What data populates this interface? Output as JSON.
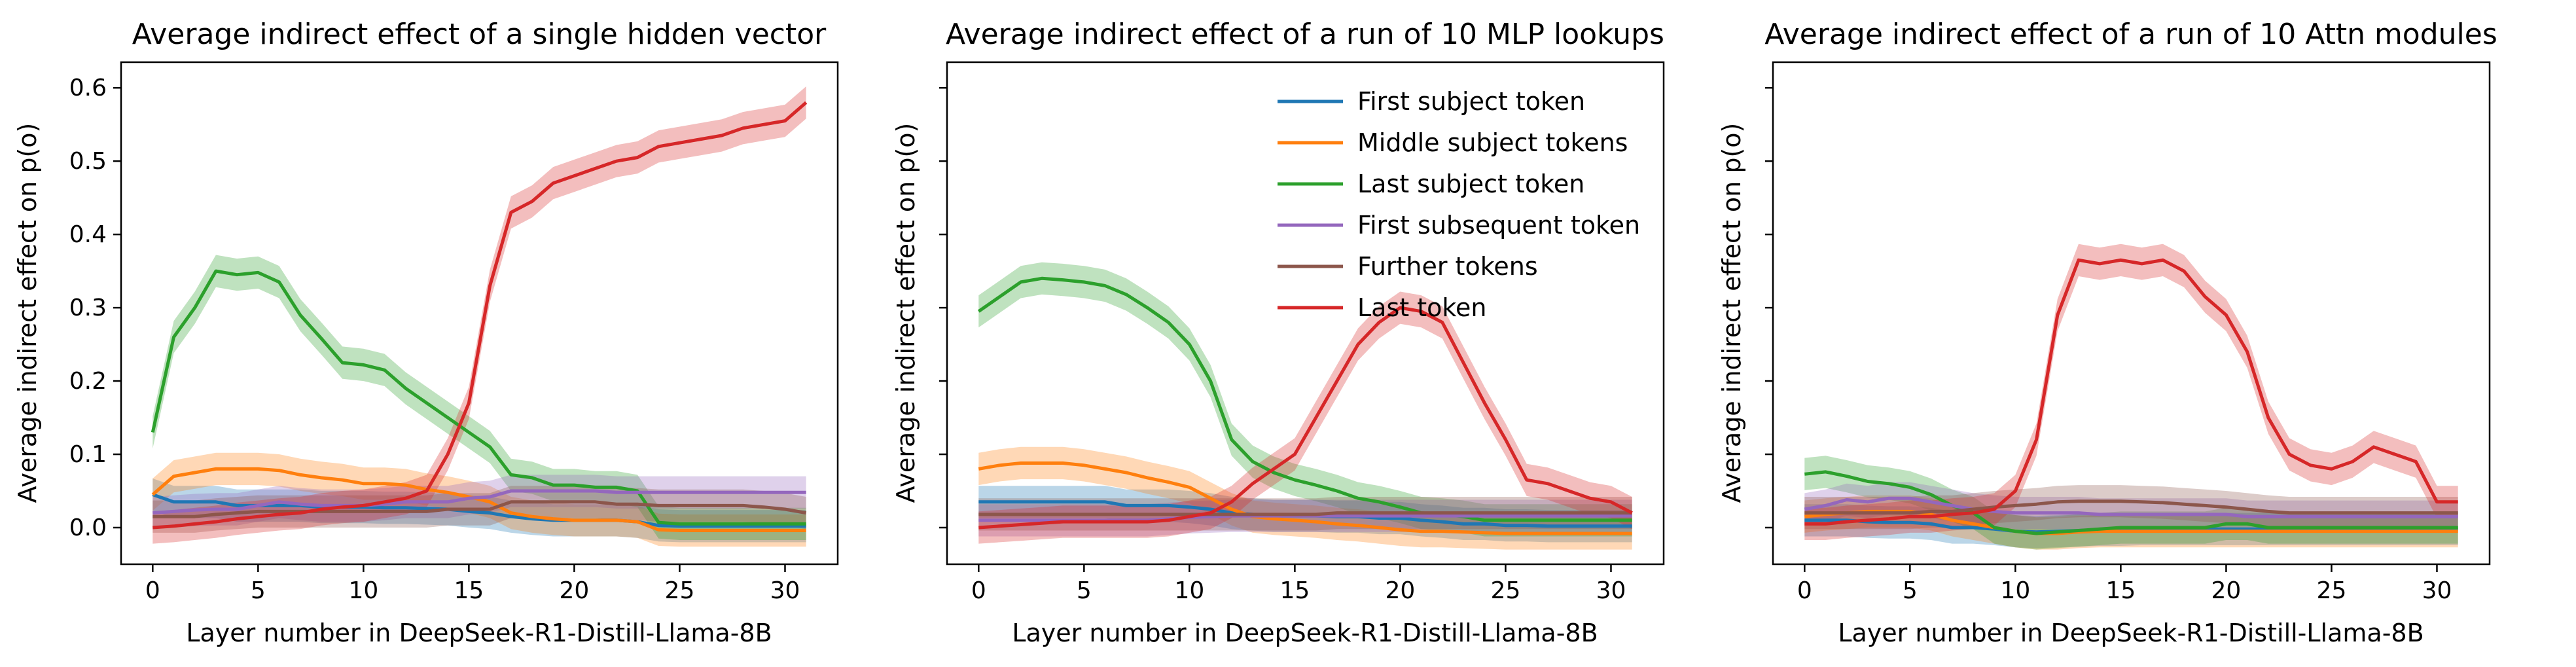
{
  "chart_data": [
    {
      "type": "line",
      "title": "Average indirect effect of a single hidden vector",
      "xlabel": "Layer number in DeepSeek-R1-Distill-Llama-8B",
      "ylabel": "Average indirect effect on p(o)",
      "xlim": [
        -1.5,
        32.5
      ],
      "ylim": [
        -0.05,
        0.635
      ],
      "xticks": [
        0,
        5,
        10,
        15,
        20,
        25,
        30
      ],
      "yticks": [
        0.0,
        0.1,
        0.2,
        0.3,
        0.4,
        0.5,
        0.6
      ],
      "ytick_labels": [
        "0.0",
        "0.1",
        "0.2",
        "0.3",
        "0.4",
        "0.5",
        "0.6"
      ],
      "band": 0.022,
      "x": [
        0,
        1,
        2,
        3,
        4,
        5,
        6,
        7,
        8,
        9,
        10,
        11,
        12,
        13,
        14,
        15,
        16,
        17,
        18,
        19,
        20,
        21,
        22,
        23,
        24,
        25,
        26,
        27,
        28,
        29,
        30,
        31
      ],
      "series": [
        {
          "name": "First subject token",
          "color": "#1f77b4",
          "values": [
            0.045,
            0.035,
            0.035,
            0.035,
            0.03,
            0.03,
            0.03,
            0.03,
            0.028,
            0.028,
            0.028,
            0.027,
            0.027,
            0.026,
            0.025,
            0.022,
            0.02,
            0.015,
            0.012,
            0.01,
            0.01,
            0.01,
            0.01,
            0.008,
            0.003,
            0.002,
            0.002,
            0.002,
            0.002,
            0.002,
            0.002,
            0.002
          ]
        },
        {
          "name": "Middle subject tokens",
          "color": "#ff7f0e",
          "values": [
            0.045,
            0.07,
            0.075,
            0.08,
            0.08,
            0.08,
            0.078,
            0.072,
            0.068,
            0.065,
            0.06,
            0.06,
            0.058,
            0.052,
            0.048,
            0.042,
            0.035,
            0.02,
            0.015,
            0.012,
            0.01,
            0.01,
            0.01,
            0.008,
            -0.003,
            -0.004,
            -0.004,
            -0.004,
            -0.004,
            -0.004,
            -0.004,
            -0.004
          ]
        },
        {
          "name": "Last subject token",
          "color": "#2ca02c",
          "values": [
            0.13,
            0.26,
            0.3,
            0.35,
            0.345,
            0.348,
            0.335,
            0.29,
            0.258,
            0.225,
            0.222,
            0.215,
            0.19,
            0.17,
            0.15,
            0.13,
            0.11,
            0.072,
            0.068,
            0.058,
            0.058,
            0.055,
            0.055,
            0.05,
            0.007,
            0.005,
            0.005,
            0.005,
            0.005,
            0.005,
            0.005,
            0.005
          ]
        },
        {
          "name": "First subsequent token",
          "color": "#9467bd",
          "values": [
            0.02,
            0.022,
            0.024,
            0.025,
            0.025,
            0.03,
            0.035,
            0.032,
            0.03,
            0.03,
            0.03,
            0.032,
            0.035,
            0.035,
            0.035,
            0.04,
            0.042,
            0.05,
            0.05,
            0.05,
            0.05,
            0.05,
            0.048,
            0.048,
            0.048,
            0.048,
            0.048,
            0.048,
            0.048,
            0.048,
            0.048,
            0.048
          ]
        },
        {
          "name": "Further tokens",
          "color": "#8c564b",
          "values": [
            0.015,
            0.015,
            0.015,
            0.018,
            0.02,
            0.022,
            0.022,
            0.022,
            0.022,
            0.022,
            0.022,
            0.022,
            0.022,
            0.022,
            0.025,
            0.025,
            0.025,
            0.035,
            0.035,
            0.035,
            0.035,
            0.035,
            0.032,
            0.032,
            0.03,
            0.03,
            0.03,
            0.03,
            0.03,
            0.028,
            0.025,
            0.02
          ]
        },
        {
          "name": "Last token",
          "color": "#d62728",
          "values": [
            0.0,
            0.002,
            0.005,
            0.008,
            0.012,
            0.015,
            0.018,
            0.02,
            0.025,
            0.028,
            0.03,
            0.035,
            0.04,
            0.05,
            0.1,
            0.17,
            0.33,
            0.43,
            0.445,
            0.47,
            0.48,
            0.49,
            0.5,
            0.505,
            0.52,
            0.525,
            0.53,
            0.535,
            0.545,
            0.55,
            0.555,
            0.58
          ]
        }
      ]
    },
    {
      "type": "line",
      "title": "Average indirect effect of a run of 10 MLP lookups",
      "xlabel": "Layer number in DeepSeek-R1-Distill-Llama-8B",
      "ylabel": "Average indirect effect on p(o)",
      "xlim": [
        -1.5,
        32.5
      ],
      "ylim": [
        -0.05,
        0.635
      ],
      "xticks": [
        0,
        5,
        10,
        15,
        20,
        25,
        30
      ],
      "yticks": [
        0.0,
        0.1,
        0.2,
        0.3,
        0.4,
        0.5,
        0.6
      ],
      "band": 0.022,
      "legend": "top-center",
      "x": [
        0,
        1,
        2,
        3,
        4,
        5,
        6,
        7,
        8,
        9,
        10,
        11,
        12,
        13,
        14,
        15,
        16,
        17,
        18,
        19,
        20,
        21,
        22,
        23,
        24,
        25,
        26,
        27,
        28,
        29,
        30,
        31
      ],
      "series": [
        {
          "name": "First subject token",
          "color": "#1f77b4",
          "values": [
            0.035,
            0.035,
            0.035,
            0.035,
            0.035,
            0.035,
            0.035,
            0.03,
            0.03,
            0.03,
            0.028,
            0.025,
            0.02,
            0.018,
            0.016,
            0.016,
            0.016,
            0.015,
            0.015,
            0.013,
            0.013,
            0.01,
            0.008,
            0.005,
            0.005,
            0.003,
            0.003,
            0.002,
            0.002,
            0.002,
            0.002,
            0.002
          ]
        },
        {
          "name": "Middle subject tokens",
          "color": "#ff7f0e",
          "values": [
            0.08,
            0.085,
            0.088,
            0.088,
            0.088,
            0.085,
            0.08,
            0.075,
            0.068,
            0.062,
            0.055,
            0.04,
            0.025,
            0.015,
            0.012,
            0.01,
            0.008,
            0.005,
            0.003,
            0.0,
            -0.003,
            -0.005,
            -0.005,
            -0.006,
            -0.007,
            -0.008,
            -0.008,
            -0.008,
            -0.008,
            -0.008,
            -0.008,
            -0.008
          ]
        },
        {
          "name": "Last subject token",
          "color": "#2ca02c",
          "values": [
            0.295,
            0.315,
            0.335,
            0.34,
            0.338,
            0.335,
            0.33,
            0.318,
            0.3,
            0.28,
            0.25,
            0.2,
            0.12,
            0.09,
            0.075,
            0.065,
            0.058,
            0.05,
            0.04,
            0.035,
            0.028,
            0.02,
            0.018,
            0.015,
            0.01,
            0.01,
            0.01,
            0.01,
            0.01,
            0.01,
            0.01,
            0.01
          ]
        },
        {
          "name": "First subsequent token",
          "color": "#9467bd",
          "values": [
            0.01,
            0.01,
            0.01,
            0.01,
            0.01,
            0.01,
            0.01,
            0.01,
            0.01,
            0.012,
            0.014,
            0.015,
            0.016,
            0.016,
            0.016,
            0.016,
            0.016,
            0.016,
            0.016,
            0.016,
            0.016,
            0.016,
            0.016,
            0.016,
            0.016,
            0.016,
            0.016,
            0.016,
            0.016,
            0.016,
            0.016,
            0.016
          ]
        },
        {
          "name": "Further tokens",
          "color": "#8c564b",
          "values": [
            0.018,
            0.018,
            0.018,
            0.018,
            0.018,
            0.018,
            0.018,
            0.018,
            0.018,
            0.018,
            0.018,
            0.018,
            0.018,
            0.018,
            0.018,
            0.018,
            0.018,
            0.02,
            0.02,
            0.02,
            0.02,
            0.02,
            0.02,
            0.02,
            0.02,
            0.02,
            0.02,
            0.02,
            0.02,
            0.02,
            0.02,
            0.02
          ]
        },
        {
          "name": "Last token",
          "color": "#d62728",
          "values": [
            0.0,
            0.002,
            0.004,
            0.006,
            0.008,
            0.008,
            0.008,
            0.008,
            0.008,
            0.01,
            0.015,
            0.02,
            0.035,
            0.06,
            0.08,
            0.1,
            0.15,
            0.2,
            0.25,
            0.28,
            0.3,
            0.295,
            0.28,
            0.225,
            0.17,
            0.12,
            0.065,
            0.06,
            0.05,
            0.04,
            0.035,
            0.02
          ]
        }
      ]
    },
    {
      "type": "line",
      "title": "Average indirect effect of a run of 10 Attn modules",
      "xlabel": "Layer number in DeepSeek-R1-Distill-Llama-8B",
      "ylabel": "Average indirect effect on p(o)",
      "xlim": [
        -1.5,
        32.5
      ],
      "ylim": [
        -0.05,
        0.635
      ],
      "xticks": [
        0,
        5,
        10,
        15,
        20,
        25,
        30
      ],
      "yticks": [
        0.0,
        0.1,
        0.2,
        0.3,
        0.4,
        0.5,
        0.6
      ],
      "band": 0.022,
      "x": [
        0,
        1,
        2,
        3,
        4,
        5,
        6,
        7,
        8,
        9,
        10,
        11,
        12,
        13,
        14,
        15,
        16,
        17,
        18,
        19,
        20,
        21,
        22,
        23,
        24,
        25,
        26,
        27,
        28,
        29,
        30,
        31
      ],
      "series": [
        {
          "name": "First subject token",
          "color": "#1f77b4",
          "values": [
            0.01,
            0.01,
            0.01,
            0.008,
            0.007,
            0.007,
            0.005,
            0.0,
            0.0,
            -0.002,
            -0.005,
            -0.006,
            -0.005,
            -0.004,
            -0.003,
            -0.003,
            -0.002,
            -0.002,
            -0.002,
            -0.002,
            -0.002,
            -0.002,
            -0.002,
            -0.002,
            -0.002,
            -0.002,
            -0.002,
            -0.002,
            -0.002,
            -0.002,
            -0.002,
            -0.002
          ]
        },
        {
          "name": "Middle subject tokens",
          "color": "#ff7f0e",
          "values": [
            0.015,
            0.018,
            0.02,
            0.022,
            0.022,
            0.022,
            0.018,
            0.01,
            0.005,
            0.0,
            -0.005,
            -0.008,
            -0.008,
            -0.006,
            -0.005,
            -0.005,
            -0.005,
            -0.005,
            -0.005,
            -0.005,
            -0.005,
            -0.005,
            -0.005,
            -0.005,
            -0.005,
            -0.005,
            -0.005,
            -0.005,
            -0.005,
            -0.005,
            -0.005,
            -0.005
          ]
        },
        {
          "name": "Last subject token",
          "color": "#2ca02c",
          "values": [
            0.073,
            0.076,
            0.07,
            0.063,
            0.06,
            0.055,
            0.045,
            0.03,
            0.02,
            0.0,
            -0.005,
            -0.008,
            -0.006,
            -0.004,
            -0.002,
            0.0,
            0.0,
            0.0,
            0.0,
            0.0,
            0.005,
            0.005,
            0.0,
            0.0,
            0.0,
            0.0,
            0.0,
            0.0,
            0.0,
            0.0,
            0.0,
            0.0
          ]
        },
        {
          "name": "First subsequent token",
          "color": "#9467bd",
          "values": [
            0.025,
            0.03,
            0.038,
            0.035,
            0.04,
            0.04,
            0.035,
            0.03,
            0.025,
            0.022,
            0.02,
            0.02,
            0.02,
            0.02,
            0.018,
            0.018,
            0.018,
            0.018,
            0.018,
            0.018,
            0.018,
            0.015,
            0.015,
            0.015,
            0.015,
            0.015,
            0.015,
            0.015,
            0.015,
            0.015,
            0.015,
            0.015
          ]
        },
        {
          "name": "Further tokens",
          "color": "#8c564b",
          "values": [
            0.02,
            0.02,
            0.02,
            0.02,
            0.02,
            0.02,
            0.022,
            0.022,
            0.025,
            0.028,
            0.03,
            0.032,
            0.035,
            0.036,
            0.036,
            0.036,
            0.035,
            0.034,
            0.032,
            0.03,
            0.028,
            0.025,
            0.022,
            0.02,
            0.02,
            0.02,
            0.02,
            0.02,
            0.02,
            0.02,
            0.02,
            0.02
          ]
        },
        {
          "name": "Last token",
          "color": "#d62728",
          "values": [
            0.005,
            0.005,
            0.008,
            0.01,
            0.012,
            0.015,
            0.015,
            0.018,
            0.02,
            0.025,
            0.05,
            0.12,
            0.29,
            0.365,
            0.36,
            0.365,
            0.36,
            0.365,
            0.35,
            0.315,
            0.29,
            0.24,
            0.15,
            0.1,
            0.085,
            0.08,
            0.09,
            0.11,
            0.1,
            0.09,
            0.035,
            0.035
          ]
        }
      ]
    }
  ]
}
